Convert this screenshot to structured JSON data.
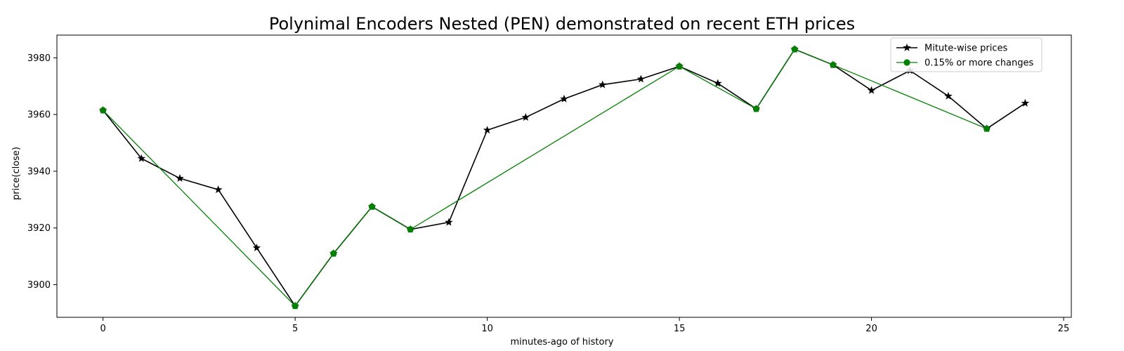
{
  "chart_data": {
    "type": "line",
    "title": "Polynimal Encoders Nested (PEN) demonstrated on recent ETH prices",
    "xlabel": "minutes-ago of history",
    "ylabel": "price(close)",
    "xlim": [
      -1.2,
      25.2
    ],
    "ylim": [
      3888.5,
      3988
    ],
    "xticks": [
      0,
      5,
      10,
      15,
      20,
      25
    ],
    "yticks": [
      3900,
      3920,
      3940,
      3960,
      3980
    ],
    "grid": false,
    "legend_position": "top-right",
    "series": [
      {
        "name": "Mitute-wise prices",
        "color": "#000000",
        "marker": "star",
        "x": [
          0,
          1,
          2,
          3,
          4,
          5,
          6,
          7,
          8,
          9,
          10,
          11,
          12,
          13,
          14,
          15,
          16,
          17,
          18,
          19,
          20,
          21,
          22,
          23,
          24
        ],
        "y": [
          3961.5,
          3944.5,
          3937.5,
          3933.5,
          3913,
          3892.5,
          3911,
          3927.5,
          3919.5,
          3922,
          3954.5,
          3959,
          3965.5,
          3970.5,
          3972.5,
          3977,
          3971,
          3962,
          3983,
          3977.5,
          3968.5,
          3975.5,
          3966.5,
          3955,
          3964
        ]
      },
      {
        "name": "0.15% or more changes",
        "color": "#008000",
        "marker": "circle",
        "x": [
          0,
          5,
          6,
          7,
          8,
          15,
          17,
          18,
          19,
          23
        ],
        "y": [
          3961.5,
          3892.5,
          3911,
          3927.5,
          3919.5,
          3977,
          3962,
          3983,
          3977.5,
          3955
        ]
      }
    ]
  }
}
